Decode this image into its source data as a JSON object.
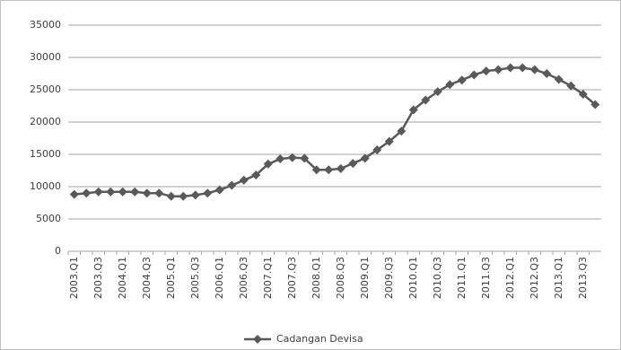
{
  "chart_data": {
    "type": "line",
    "categories": [
      "2003.Q1",
      null,
      "2003.Q3",
      null,
      "2004.Q1",
      null,
      "2004.Q3",
      null,
      "2005.Q1",
      null,
      "2005.Q3",
      null,
      "2006.Q1",
      null,
      "2006.Q3",
      null,
      "2007.Q1",
      null,
      "2007.Q3",
      null,
      "2008.Q1",
      null,
      "2008.Q3",
      null,
      "2009.Q1",
      null,
      "2009.Q3",
      null,
      "2010.Q1",
      null,
      "2010.Q3",
      null,
      "2011.Q1",
      null,
      "2011.Q3",
      null,
      "2012.Q1",
      null,
      "2012.Q3",
      null,
      "2013.Q1",
      null,
      "2013.Q3",
      null
    ],
    "series": [
      {
        "name": "Cadangan Devisa",
        "color": "#595959",
        "values": [
          8800,
          9000,
          9200,
          9200,
          9200,
          9200,
          9000,
          9000,
          8500,
          8500,
          8700,
          9000,
          9500,
          10200,
          11000,
          11800,
          13500,
          14300,
          14500,
          14400,
          12600,
          12600,
          12800,
          13600,
          14400,
          15700,
          17000,
          18600,
          21900,
          23400,
          24700,
          25800,
          26500,
          27300,
          27900,
          28100,
          28400,
          28400,
          28100,
          27500,
          26600,
          25600,
          24300,
          22700
        ]
      }
    ],
    "ylim": [
      0,
      35000
    ],
    "yticks": [
      0,
      5000,
      10000,
      15000,
      20000,
      25000,
      30000,
      35000
    ],
    "grid": true,
    "legend": "bottom"
  }
}
